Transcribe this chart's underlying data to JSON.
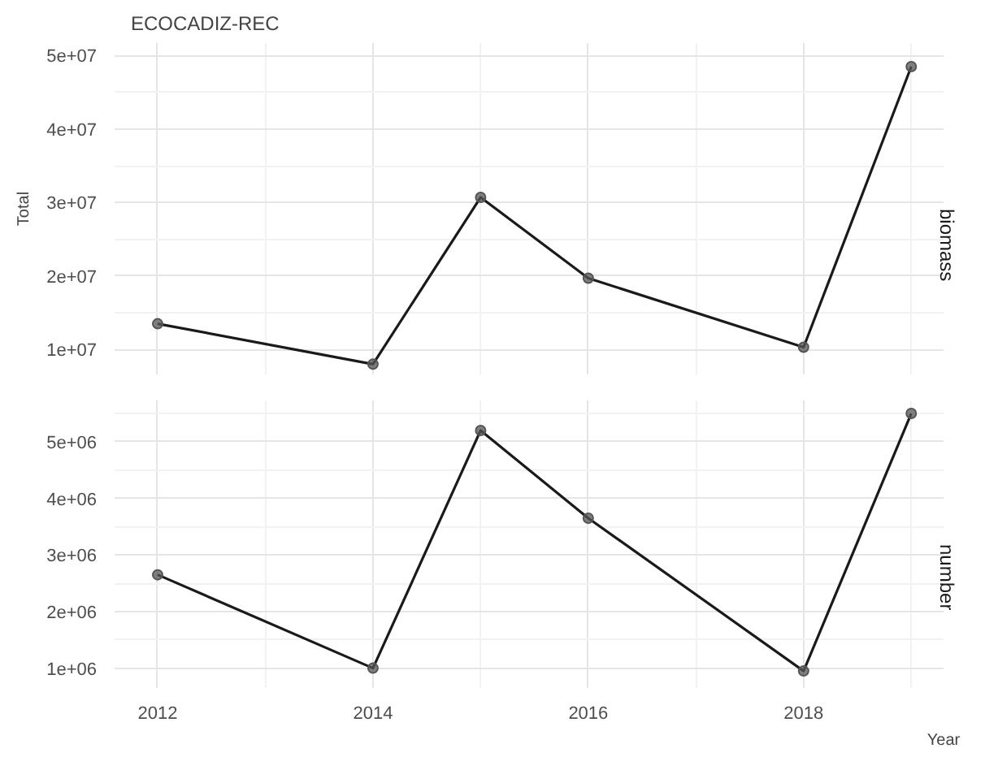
{
  "chart_data": [
    {
      "type": "line",
      "title": "ECOCADIZ-REC",
      "ylabel": "Total",
      "y2label": "biomass",
      "x": [
        2012,
        2014,
        2015,
        2016,
        2018,
        2019
      ],
      "series": [
        {
          "color": "#1a1a1a",
          "values": [
            13500000,
            8000000,
            30700000,
            19700000,
            10300000,
            48500000
          ]
        }
      ],
      "xlim": [
        2011.6,
        2019.3
      ],
      "xticks": [
        2012,
        2014,
        2016,
        2018
      ],
      "ylim": [
        6600000,
        51700000
      ],
      "yticks": [
        {
          "value": 10000000,
          "label": "1e+07"
        },
        {
          "value": 20000000,
          "label": "2e+07"
        },
        {
          "value": 30000000,
          "label": "3e+07"
        },
        {
          "value": 40000000,
          "label": "4e+07"
        },
        {
          "value": 50000000,
          "label": "5e+07"
        }
      ],
      "grid": true,
      "marker": "circle",
      "line_style": "solid",
      "tick_labels": "y"
    },
    {
      "type": "line",
      "xlabel": "Year",
      "y2label": "number",
      "x": [
        2012,
        2014,
        2015,
        2016,
        2018,
        2019
      ],
      "series": [
        {
          "color": "#1a1a1a",
          "values": [
            2650000,
            1000000,
            5200000,
            3650000,
            950000,
            5500000
          ]
        }
      ],
      "xlim": [
        2011.6,
        2019.3
      ],
      "xticks": [
        2012,
        2014,
        2016,
        2018
      ],
      "ylim": [
        650000,
        5730000
      ],
      "yticks": [
        {
          "value": 1000000,
          "label": "1e+06"
        },
        {
          "value": 2000000,
          "label": "2e+06"
        },
        {
          "value": 3000000,
          "label": "3e+06"
        },
        {
          "value": 4000000,
          "label": "4e+06"
        },
        {
          "value": 5000000,
          "label": "5e+06"
        }
      ],
      "grid": true,
      "marker": "circle",
      "line_style": "solid"
    }
  ]
}
